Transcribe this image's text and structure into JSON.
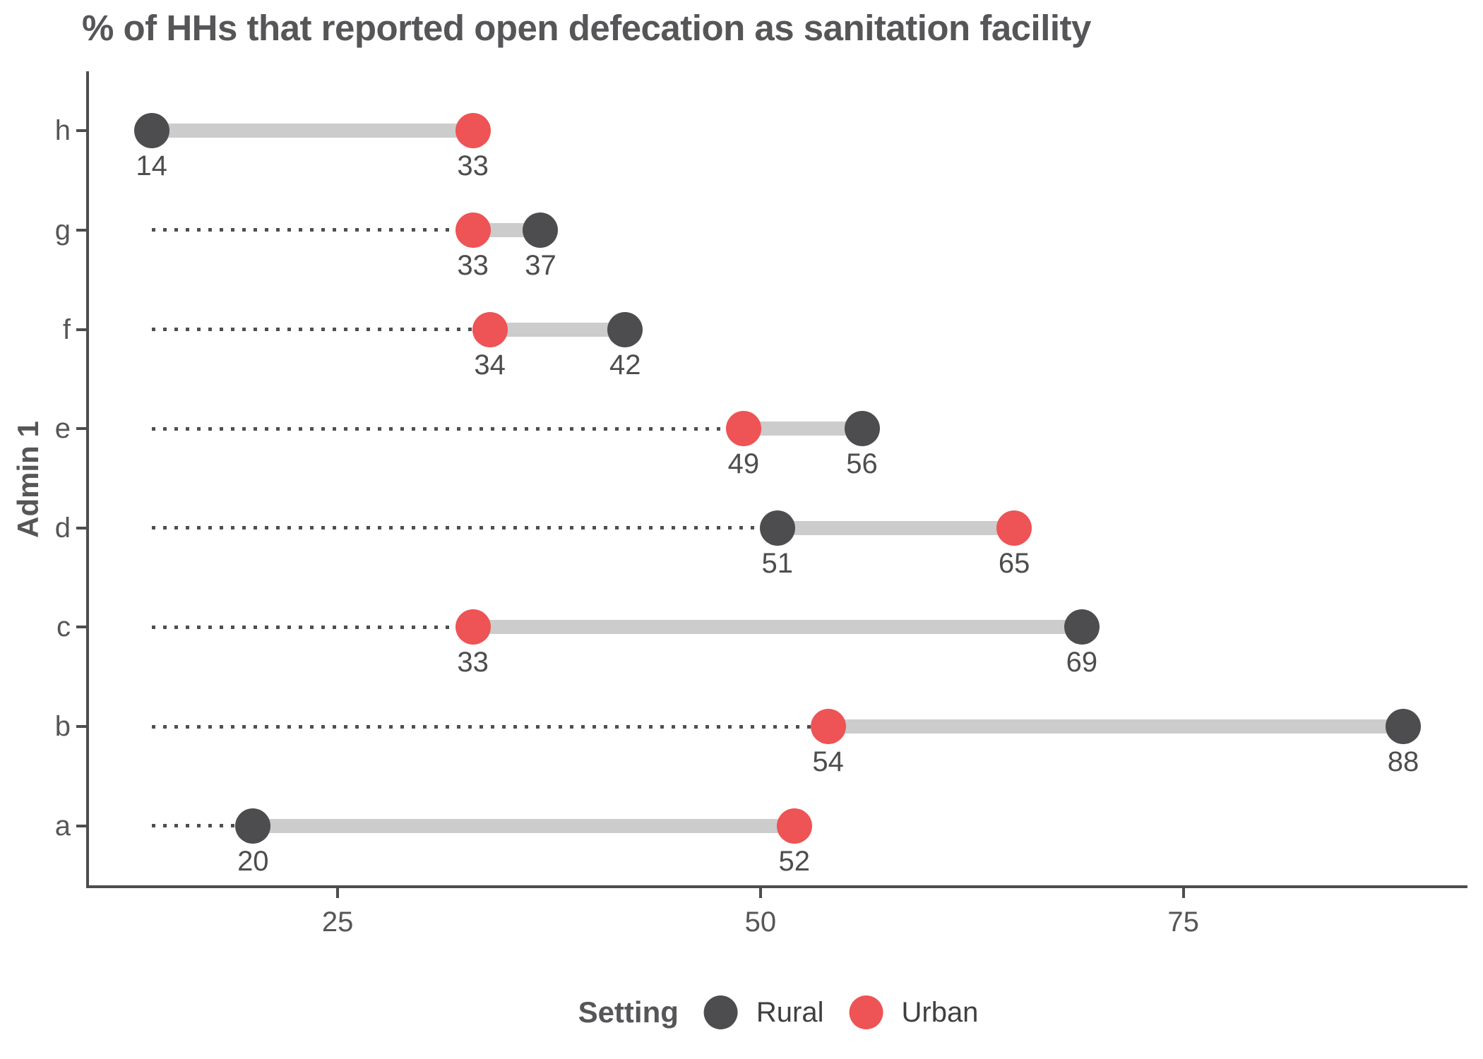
{
  "title": "% of HHs that reported open defecation as sanitation facility",
  "y_axis": {
    "title": "Admin 1"
  },
  "legend": {
    "title": "Setting",
    "items": [
      {
        "label": "Rural",
        "color": "#4d4d4f"
      },
      {
        "label": "Urban",
        "color": "#ee5355"
      }
    ]
  },
  "chart_data": {
    "type": "dumbbell",
    "orientation": "horizontal",
    "title": "% of HHs that reported open defecation as sanitation facility",
    "xlabel": "",
    "ylabel": "Admin 1",
    "categories": [
      "h",
      "g",
      "f",
      "e",
      "d",
      "c",
      "b",
      "a"
    ],
    "series": [
      {
        "name": "Rural",
        "color": "#4d4d4f",
        "values": [
          14,
          37,
          42,
          56,
          51,
          69,
          88,
          20
        ]
      },
      {
        "name": "Urban",
        "color": "#ee5355",
        "values": [
          33,
          33,
          34,
          49,
          65,
          33,
          54,
          52
        ]
      }
    ],
    "value_labels_shown": true,
    "x_ticks": [
      25,
      50,
      75
    ],
    "xlim": [
      10.3,
      91.8
    ],
    "grid": false,
    "legend_position": "bottom",
    "legend_title": "Setting",
    "leader_line_origin": 14,
    "connector_color": "#cccccc",
    "leader_color": "#4f4f4f",
    "axis_color": "#4d4d4f",
    "value_label_color": "#4d4d4d",
    "text_color": "#565659"
  }
}
